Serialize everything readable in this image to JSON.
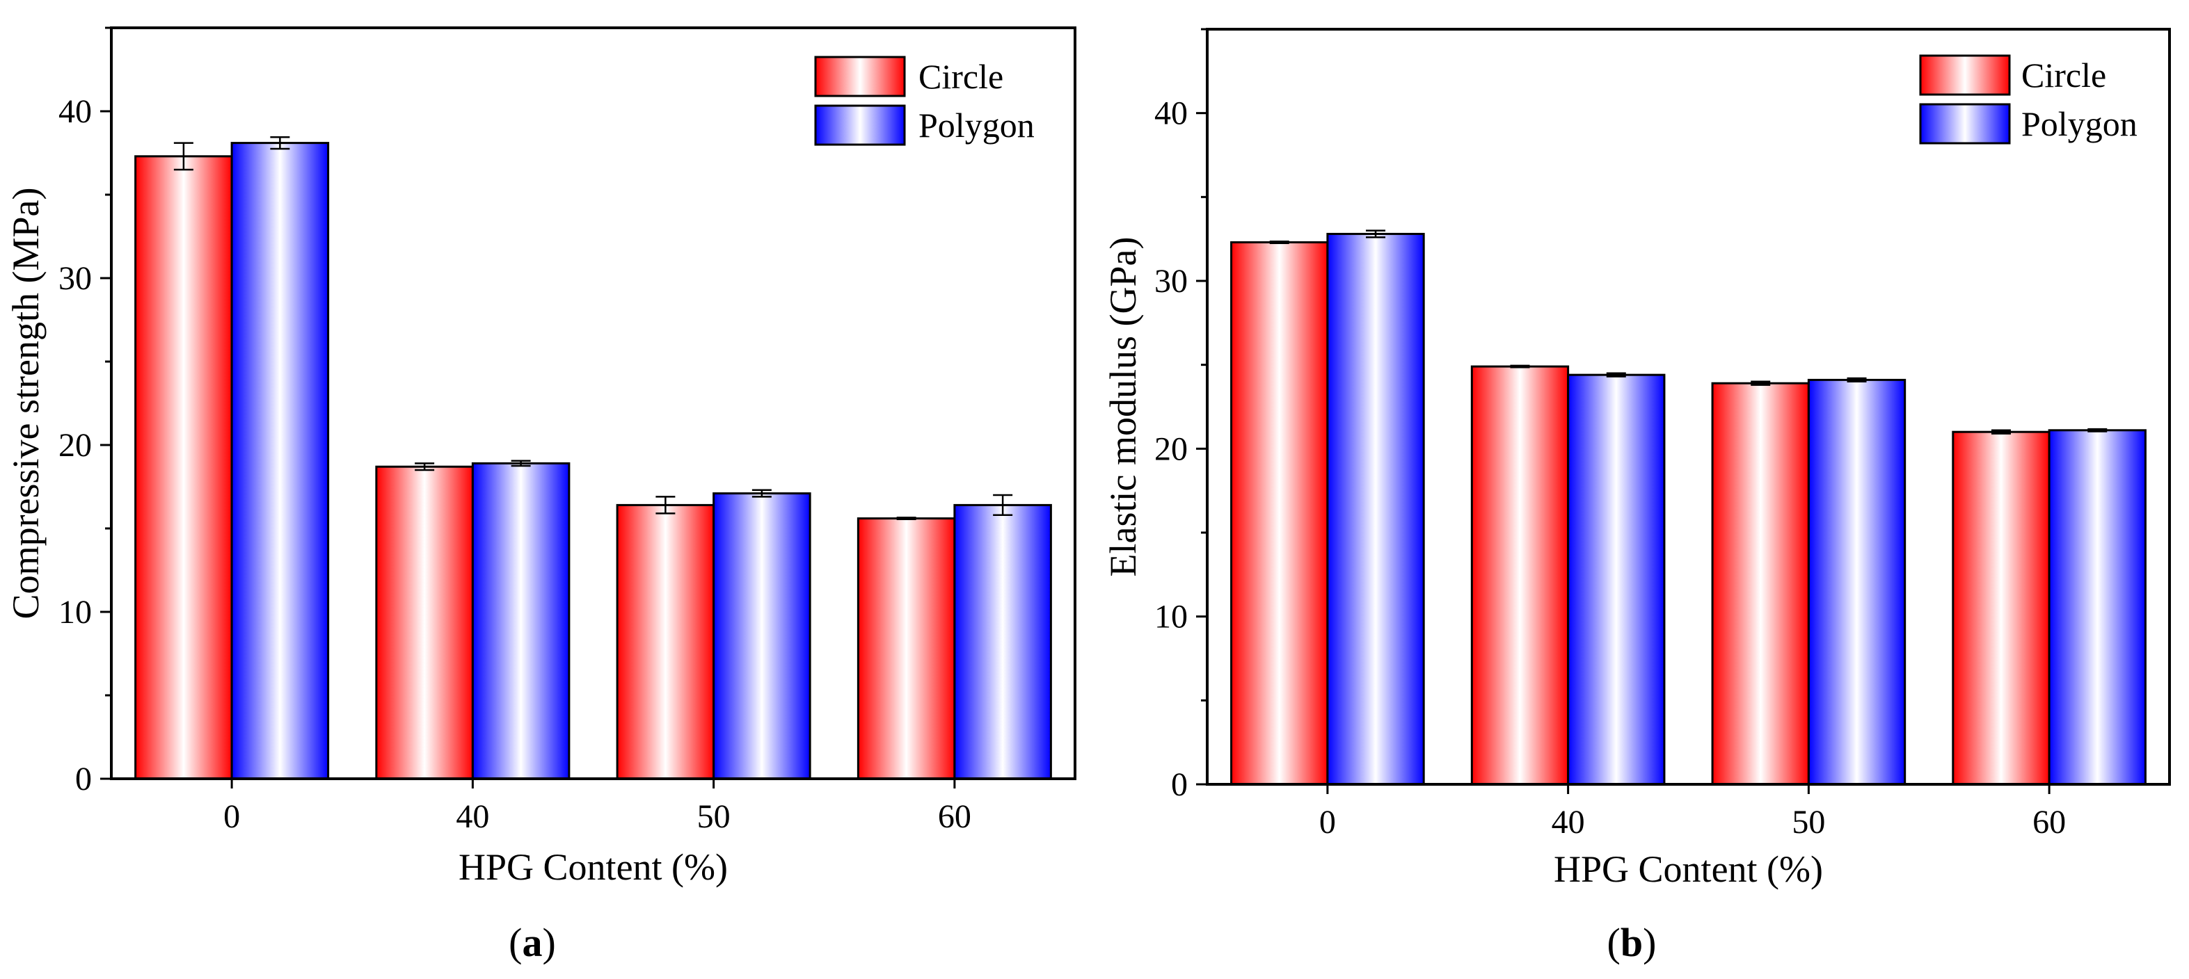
{
  "series_styles": {
    "Circle": {
      "edge": "#ff0000",
      "center": "#ffffff"
    },
    "Polygon": {
      "edge": "#0000ff",
      "center": "#ffffff"
    }
  },
  "panels": [
    {
      "caption_letter": "a",
      "caption_open": "(",
      "caption_close": ")"
    },
    {
      "caption_letter": "b",
      "caption_open": "(",
      "caption_close": ")"
    }
  ],
  "chart_data": [
    {
      "type": "bar",
      "title": "",
      "xlabel": "HPG Content (%)",
      "ylabel": "Compressive strength (MPa)",
      "categories": [
        "0",
        "40",
        "50",
        "60"
      ],
      "ylim": [
        0,
        45
      ],
      "yticks": [
        0,
        10,
        20,
        30,
        40
      ],
      "legend_position": "top-right",
      "series": [
        {
          "name": "Circle",
          "values": [
            37.3,
            18.7,
            16.4,
            15.6
          ],
          "errors": [
            0.8,
            0.2,
            0.5,
            0.05
          ]
        },
        {
          "name": "Polygon",
          "values": [
            38.1,
            18.9,
            17.1,
            16.4
          ],
          "errors": [
            0.35,
            0.15,
            0.2,
            0.6
          ]
        }
      ]
    },
    {
      "type": "bar",
      "title": "",
      "xlabel": "HPG Content (%)",
      "ylabel": "Elastic modulus (GPa)",
      "categories": [
        "0",
        "40",
        "50",
        "60"
      ],
      "ylim": [
        0,
        45
      ],
      "yticks": [
        0,
        10,
        20,
        30,
        40
      ],
      "legend_position": "top-right",
      "series": [
        {
          "name": "Circle",
          "values": [
            32.3,
            24.9,
            23.9,
            21.0
          ],
          "errors": [
            0.05,
            0.05,
            0.1,
            0.1
          ]
        },
        {
          "name": "Polygon",
          "values": [
            32.8,
            24.4,
            24.1,
            21.1
          ],
          "errors": [
            0.2,
            0.1,
            0.1,
            0.07
          ]
        }
      ]
    }
  ]
}
